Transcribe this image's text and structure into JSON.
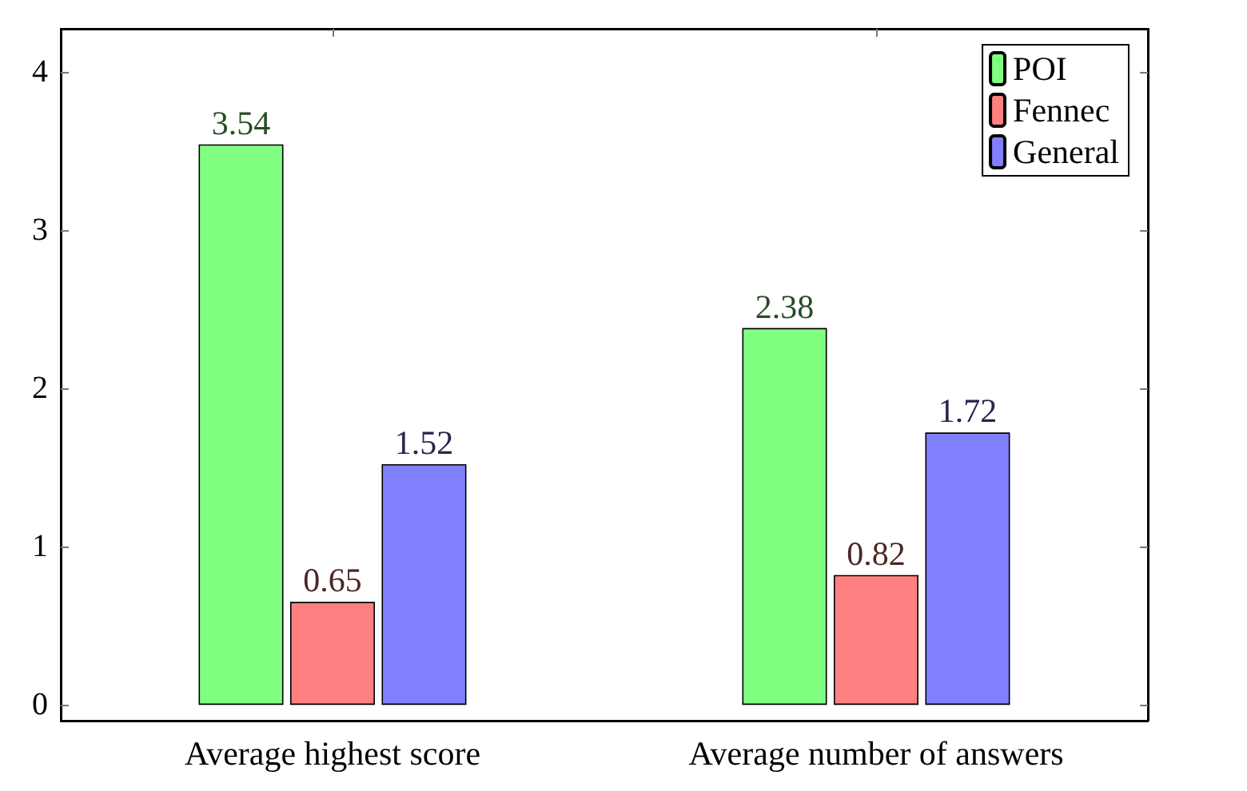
{
  "chart_data": {
    "type": "bar",
    "categories": [
      "Average highest score",
      "Average number of answers"
    ],
    "series": [
      {
        "name": "POI",
        "color": "#80ff80",
        "values": [
          3.54,
          2.38
        ]
      },
      {
        "name": "Fennec",
        "color": "#ff8080",
        "values": [
          0.65,
          0.82
        ]
      },
      {
        "name": "General",
        "color": "#8080ff",
        "values": [
          1.52,
          1.72
        ]
      }
    ],
    "ylim": [
      -0.1,
      4.27
    ],
    "yticks": [
      0,
      1,
      2,
      3,
      4
    ],
    "grid": false,
    "legend": "top right",
    "data_labels": true
  }
}
